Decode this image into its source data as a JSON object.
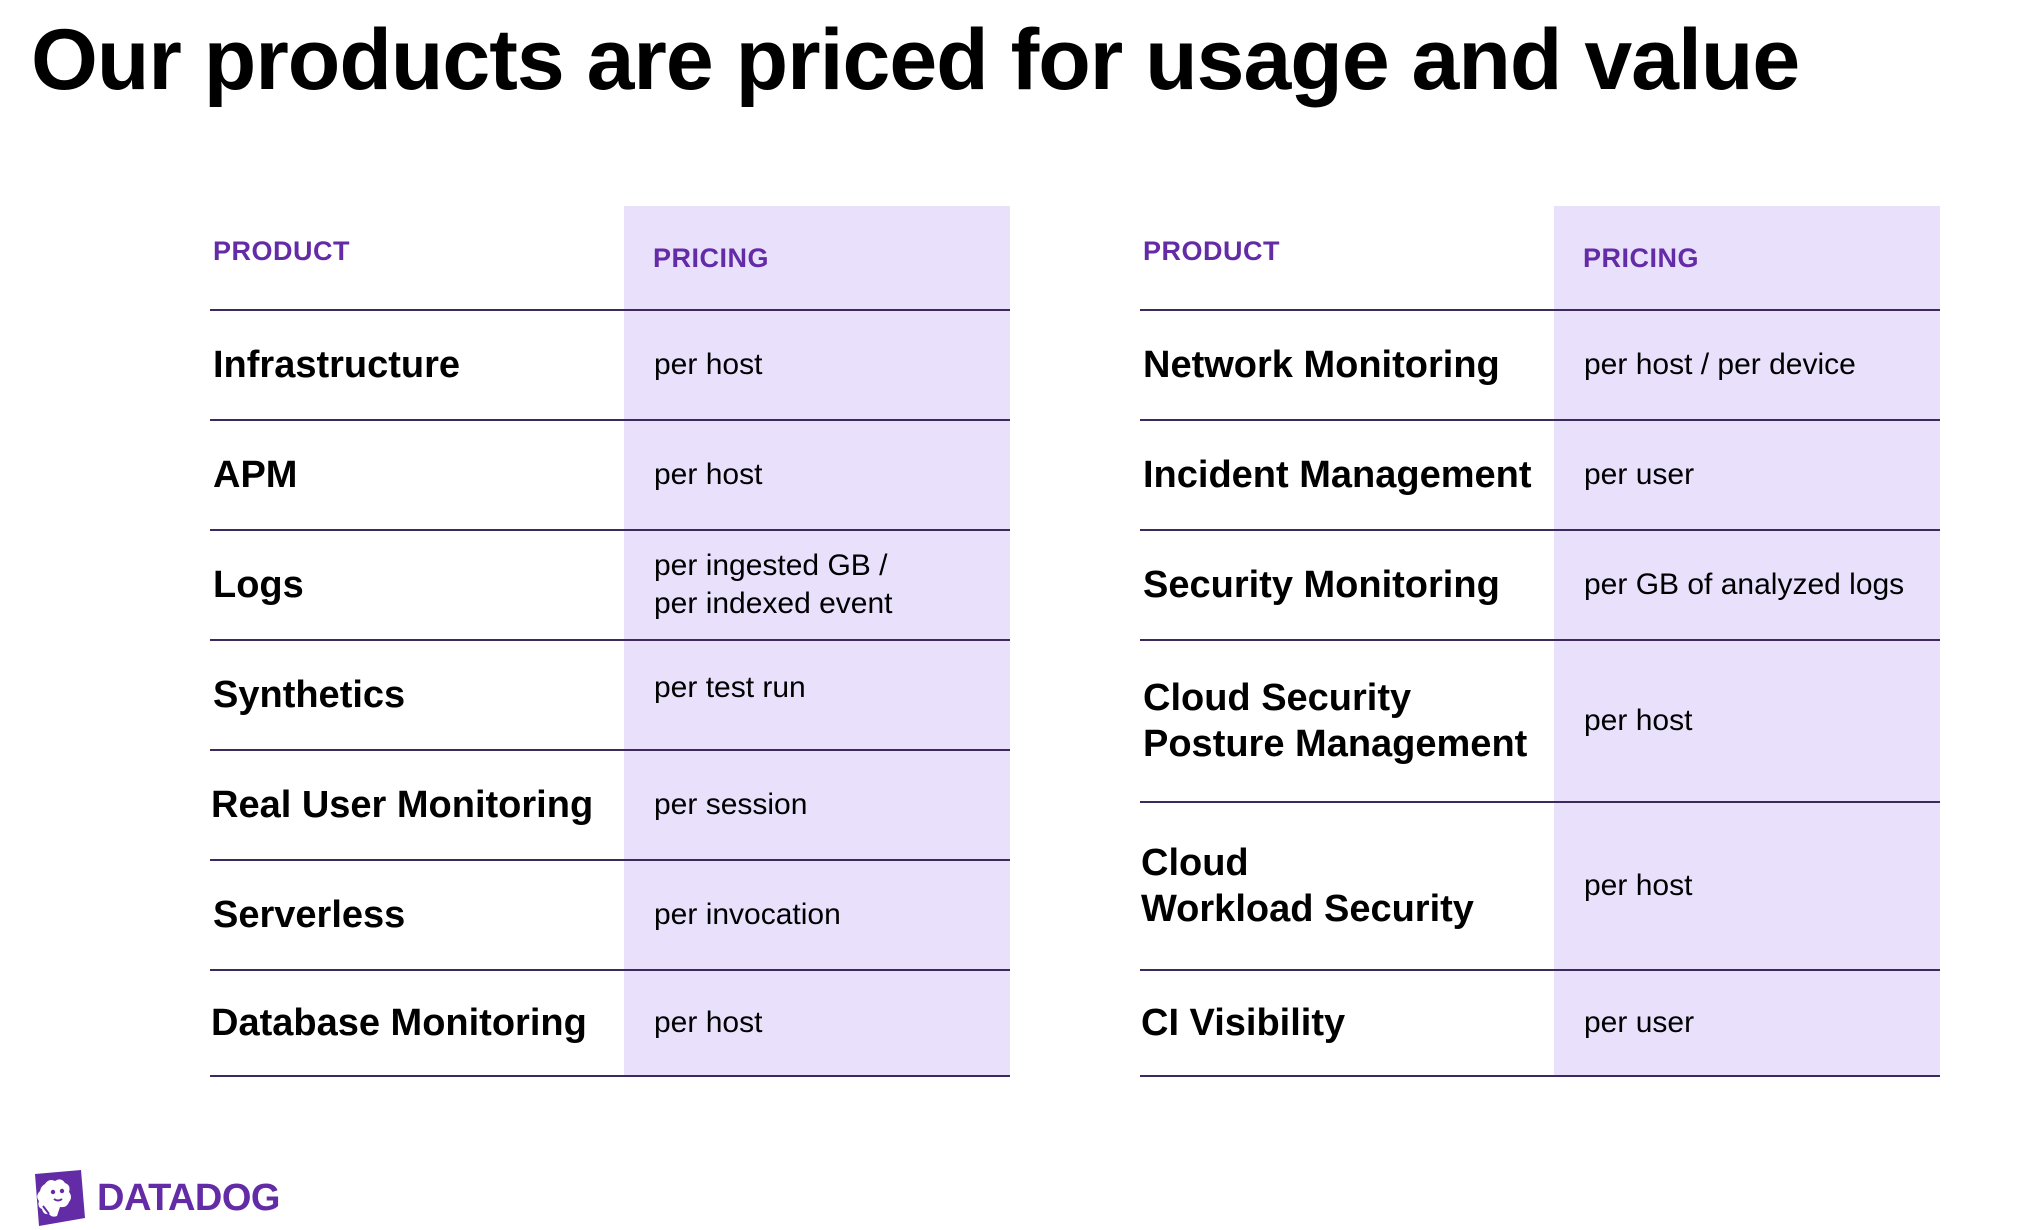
{
  "title": "Our products are priced for usage and value",
  "left_table": {
    "product_header": "PRODUCT",
    "pricing_header": "PRICING",
    "rows": [
      {
        "product": "Infrastructure",
        "pricing": "per host"
      },
      {
        "product": "APM",
        "pricing": "per host"
      },
      {
        "product": "Logs",
        "pricing": "per ingested GB /\nper indexed event"
      },
      {
        "product": "Synthetics",
        "pricing": "per test run"
      },
      {
        "product": "Real User Monitoring",
        "pricing": "per session"
      },
      {
        "product": "Serverless",
        "pricing": "per invocation"
      },
      {
        "product": "Database Monitoring",
        "pricing": "per host"
      }
    ]
  },
  "right_table": {
    "product_header": "PRODUCT",
    "pricing_header": "PRICING",
    "rows": [
      {
        "product": "Network Monitoring",
        "pricing": "per host / per device"
      },
      {
        "product": "Incident Management",
        "pricing": "per user"
      },
      {
        "product": "Security Monitoring",
        "pricing": "per GB of analyzed logs"
      },
      {
        "product": "Cloud Security\nPosture Management",
        "pricing": "per host"
      },
      {
        "product": "Cloud\nWorkload Security",
        "pricing": "per host"
      },
      {
        "product": "CI Visibility",
        "pricing": "per user"
      }
    ]
  },
  "brand": {
    "name": "DATADOG",
    "icon": "datadog-dog-logo-icon",
    "color": "#632ca6"
  },
  "colors": {
    "accent": "#632ca6",
    "pricing_band": "#e9e0fc",
    "rule": "#3d2a5c"
  }
}
